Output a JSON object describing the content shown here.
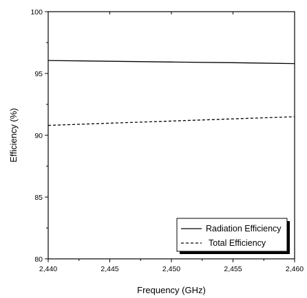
{
  "chart_data": {
    "type": "line",
    "xlabel": "Frequency (GHz)",
    "ylabel": "Efficiency (%)",
    "xlim": [
      2.44,
      2.46
    ],
    "ylim": [
      80,
      100
    ],
    "x_ticks": [
      2.44,
      2.445,
      2.45,
      2.455,
      2.46
    ],
    "x_tick_labels": [
      "2,440",
      "2,445",
      "2,450",
      "2,455",
      "2,460"
    ],
    "y_ticks": [
      80,
      85,
      90,
      95,
      100
    ],
    "y_tick_labels": [
      "80",
      "85",
      "90",
      "95",
      "100"
    ],
    "grid": false,
    "legend_position": "bottom-right",
    "series": [
      {
        "name": "Radiation Efficiency",
        "line_style": "solid",
        "color": "#000000",
        "x": [
          2.44,
          2.445,
          2.45,
          2.455,
          2.46
        ],
        "y": [
          96.05,
          95.99,
          95.93,
          95.87,
          95.8
        ]
      },
      {
        "name": "Total Efficiency",
        "line_style": "dashed",
        "color": "#000000",
        "x": [
          2.44,
          2.445,
          2.45,
          2.455,
          2.46
        ],
        "y": [
          90.8,
          90.98,
          91.15,
          91.33,
          91.5
        ]
      }
    ]
  }
}
